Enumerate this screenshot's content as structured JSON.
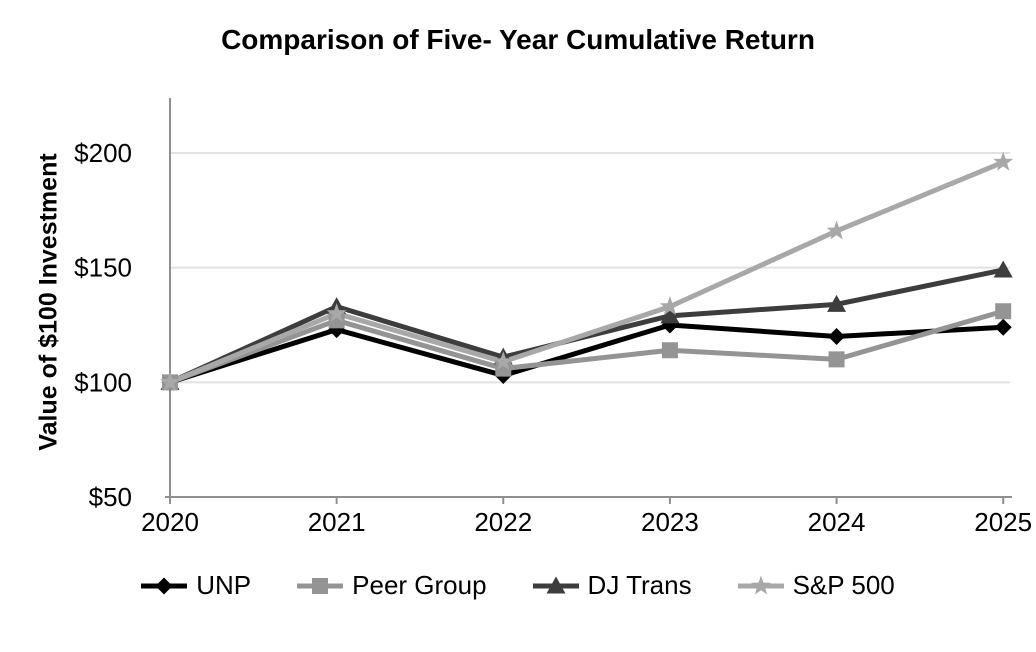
{
  "chart_data": {
    "type": "line",
    "title": "Comparison of Five- Year Cumulative Return",
    "ylabel": "Value of $100 Investment",
    "xlabel": "",
    "x_labels": [
      "2020",
      "2021",
      "2022",
      "2023",
      "2024",
      "2025"
    ],
    "y_ticks": [
      {
        "label": "$50",
        "value": 50
      },
      {
        "label": "$100",
        "value": 100
      },
      {
        "label": "$150",
        "value": 150
      },
      {
        "label": "$200",
        "value": 200
      }
    ],
    "ylim": [
      50,
      224
    ],
    "grid": "horizontal-light",
    "legend_position": "bottom",
    "axis_color": "#8f8f8f",
    "gridline_color": "#e2e2e2",
    "series": [
      {
        "name": "UNP",
        "color": "#000000",
        "marker": "diamond",
        "values": [
          100,
          123,
          103,
          125,
          120,
          124
        ]
      },
      {
        "name": "Peer Group",
        "color": "#949494",
        "marker": "square",
        "values": [
          100,
          127,
          106,
          114,
          110,
          131
        ]
      },
      {
        "name": "DJ Trans",
        "color": "#3d3d3d",
        "marker": "triangle",
        "values": [
          100,
          133,
          111,
          129,
          134,
          149
        ]
      },
      {
        "name": "S&P 500",
        "color": "#a8a8a8",
        "marker": "star",
        "values": [
          100,
          130,
          109,
          133,
          166,
          196
        ]
      }
    ]
  }
}
